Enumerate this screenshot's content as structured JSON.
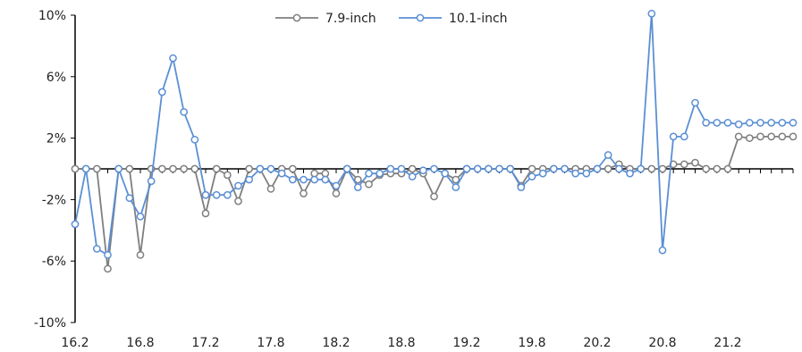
{
  "chart_data": {
    "type": "line",
    "title": "",
    "xlabel": "",
    "ylabel": "",
    "ylim": [
      -10,
      10
    ],
    "yticks": [
      "-10%",
      "-6%",
      "-2%",
      "2%",
      "6%",
      "10%"
    ],
    "ytick_values": [
      -10,
      -6,
      -2,
      2,
      6,
      10
    ],
    "xtick_labels": [
      "16.2",
      "16.8",
      "17.2",
      "17.8",
      "18.2",
      "18.8",
      "19.2",
      "19.8",
      "20.2",
      "20.8",
      "21.2"
    ],
    "xtick_positions": [
      0,
      6,
      12,
      18,
      24,
      30,
      36,
      42,
      48,
      54,
      60
    ],
    "legend_position": "top-center",
    "grid": false,
    "x_index_start": 0,
    "series": [
      {
        "name": "7.9-inch",
        "color": "#7f7f7f",
        "values": [
          0,
          0,
          0,
          -6.5,
          0,
          0,
          -5.6,
          0,
          0,
          0,
          0,
          0,
          -2.9,
          0,
          -0.4,
          -2.1,
          0,
          0,
          -1.3,
          0,
          0,
          -1.6,
          -0.3,
          -0.3,
          -1.6,
          0,
          -0.7,
          -1.0,
          -0.4,
          -0.3,
          -0.3,
          0,
          -0.3,
          -1.8,
          -0.3,
          -0.7,
          0,
          0,
          0,
          0,
          0,
          -1.1,
          0,
          0,
          0,
          0,
          0,
          0,
          0,
          0,
          0.3,
          0,
          0,
          0,
          0,
          0.3,
          0.3,
          0.4,
          0,
          0,
          0,
          2.1,
          2.0,
          2.1,
          2.1,
          2.1,
          2.1
        ]
      },
      {
        "name": "10.1-inch",
        "color": "#5b8fd4",
        "values": [
          -3.6,
          0,
          -5.2,
          -5.6,
          0,
          -1.9,
          -3.1,
          -0.8,
          5.0,
          7.2,
          3.7,
          1.9,
          -1.7,
          -1.7,
          -1.7,
          -1.1,
          -0.7,
          0,
          0,
          -0.3,
          -0.7,
          -0.7,
          -0.7,
          -0.7,
          -1.1,
          0,
          -1.2,
          -0.3,
          -0.3,
          0,
          0,
          -0.5,
          -0.1,
          0,
          -0.3,
          -1.2,
          0,
          0,
          0,
          0,
          0,
          -1.2,
          -0.5,
          -0.3,
          0,
          0,
          -0.3,
          -0.3,
          0,
          0.9,
          0,
          -0.3,
          0,
          10.1,
          -5.3,
          2.1,
          2.1,
          4.3,
          3.0,
          3.0,
          3.0,
          2.9,
          3.0,
          3.0,
          3.0,
          3.0,
          3.0
        ]
      }
    ]
  }
}
